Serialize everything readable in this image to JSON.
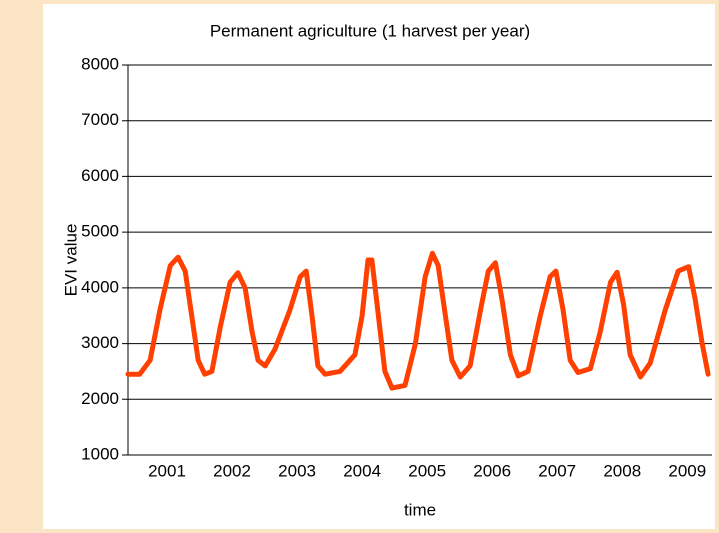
{
  "chart_data": {
    "type": "line",
    "title": "Permanent agriculture (1 harvest per year)",
    "x_label": "time",
    "y_label": "EVI value",
    "xlim": [
      2000.4,
      2009.38
    ],
    "xticks": [
      2001,
      2002,
      2003,
      2004,
      2005,
      2006,
      2007,
      2008,
      2009
    ],
    "ylim": [
      1000,
      8000
    ],
    "yticks": [
      1000,
      2000,
      3000,
      4000,
      5000,
      6000,
      7000,
      8000
    ],
    "grid": true,
    "series": [
      {
        "name": "EVI",
        "color": "#ff4000",
        "x": [
          2000.4,
          2000.58,
          2000.74,
          2000.89,
          2001.05,
          2001.17,
          2001.28,
          2001.38,
          2001.48,
          2001.58,
          2001.69,
          2001.82,
          2001.97,
          2002.09,
          2002.2,
          2002.31,
          2002.4,
          2002.51,
          2002.66,
          2002.89,
          2003.05,
          2003.14,
          2003.23,
          2003.32,
          2003.43,
          2003.66,
          2003.89,
          2004.0,
          2004.09,
          2004.15,
          2004.25,
          2004.35,
          2004.46,
          2004.66,
          2004.82,
          2004.97,
          2005.08,
          2005.17,
          2005.28,
          2005.38,
          2005.51,
          2005.66,
          2005.82,
          2005.94,
          2006.05,
          2006.15,
          2006.28,
          2006.4,
          2006.55,
          2006.74,
          2006.89,
          2006.98,
          2007.09,
          2007.2,
          2007.32,
          2007.51,
          2007.66,
          2007.82,
          2007.92,
          2008.02,
          2008.12,
          2008.28,
          2008.43,
          2008.66,
          2008.86,
          2009.02,
          2009.12,
          2009.23,
          2009.32
        ],
        "values": [
          2450,
          2450,
          2700,
          3600,
          4400,
          4550,
          4300,
          3500,
          2700,
          2450,
          2500,
          3300,
          4100,
          4270,
          4000,
          3200,
          2700,
          2600,
          2900,
          3600,
          4200,
          4300,
          3500,
          2600,
          2450,
          2500,
          2800,
          3500,
          4500,
          4500,
          3500,
          2500,
          2200,
          2250,
          3000,
          4200,
          4620,
          4400,
          3500,
          2700,
          2400,
          2600,
          3600,
          4300,
          4450,
          3800,
          2800,
          2420,
          2500,
          3500,
          4200,
          4300,
          3600,
          2700,
          2480,
          2550,
          3200,
          4100,
          4280,
          3700,
          2800,
          2400,
          2650,
          3600,
          4300,
          4380,
          3800,
          3000,
          2450
        ]
      }
    ]
  }
}
